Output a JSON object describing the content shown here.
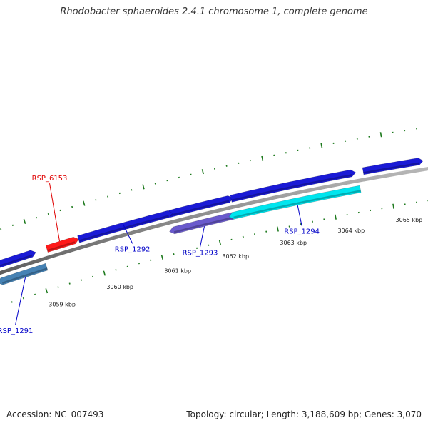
{
  "title": "Rhodobacter sphaeroides 2.4.1 chromosome 1, complete genome",
  "footer": {
    "accession": "Accession: NC_007493",
    "summary": "Topology: circular; Length: 3,188,609 bp; Genes: 3,070"
  },
  "colors": {
    "backbone": "#8a8a8a",
    "tick": "#1e7a1e",
    "gene_forward": "#1a1ad6",
    "gene_highlight": "#ff1a1a",
    "gene_reverse_light": "#00e5ee",
    "gene_reverse_mid": "#6a5acd",
    "gene_reverse_steel": "#4682b4",
    "label_blue": "#0000c8",
    "label_red": "#e00000"
  },
  "scale": {
    "unit": "kbp",
    "ticks": [
      {
        "kbp": 3059,
        "label": "3059 kbp"
      },
      {
        "kbp": 3060,
        "label": "3060 kbp"
      },
      {
        "kbp": 3061,
        "label": "3061 kbp"
      },
      {
        "kbp": 3062,
        "label": "3062 kbp"
      },
      {
        "kbp": 3063,
        "label": "3063 kbp"
      },
      {
        "kbp": 3064,
        "label": "3064 kbp"
      },
      {
        "kbp": 3065,
        "label": "3065 kbp"
      }
    ]
  },
  "genes": [
    {
      "name": "RSP_1291",
      "strand": "reverse",
      "start_kbp": 3058.35,
      "end_kbp": 3059.12,
      "color": "steel",
      "label": "RSP_1291"
    },
    {
      "name": "RSP_6153",
      "strand": "forward",
      "start_kbp": 3059.21,
      "end_kbp": 3059.68,
      "color": "highlight",
      "label": "RSP_6153"
    },
    {
      "name": "RSP_1292",
      "strand": "forward",
      "start_kbp": 3059.75,
      "end_kbp": 3061.28,
      "color": "forward",
      "label": "RSP_1292"
    },
    {
      "name": "RSP_1293",
      "strand": "reverse",
      "start_kbp": 3061.3,
      "end_kbp": 3062.32,
      "color": "mid",
      "label": "RSP_1293"
    },
    {
      "name": "RSP_1294",
      "strand": "reverse",
      "start_kbp": 3062.32,
      "end_kbp": 3064.5,
      "color": "light",
      "label": "RSP_1294"
    }
  ],
  "unlabeled_genes": [
    {
      "strand": "forward",
      "start_kbp": 3058.35,
      "end_kbp": 3058.95,
      "color": "forward"
    },
    {
      "strand": "forward",
      "start_kbp": 3061.3,
      "end_kbp": 3062.31,
      "color": "forward"
    },
    {
      "strand": "forward",
      "start_kbp": 3062.35,
      "end_kbp": 3064.4,
      "color": "forward"
    },
    {
      "strand": "forward",
      "start_kbp": 3064.6,
      "end_kbp": 3065.55,
      "color": "forward"
    }
  ]
}
